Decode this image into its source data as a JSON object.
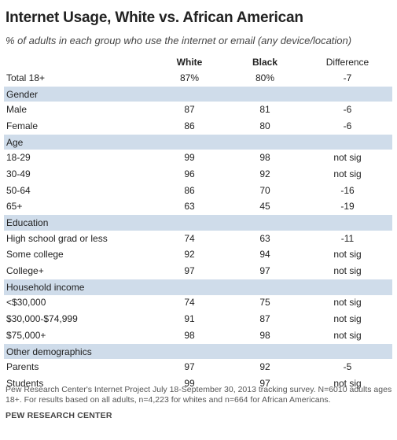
{
  "chart_data": {
    "type": "table",
    "title": "Internet Usage, White vs. African American",
    "subtitle": "% of adults in each group who use the internet or email (any device/location)",
    "columns": [
      "White",
      "Black",
      "Difference"
    ],
    "total_row": {
      "label": "Total 18+",
      "white": "87%",
      "black": "80%",
      "difference": "-7"
    },
    "sections": [
      {
        "heading": "Gender",
        "rows": [
          {
            "label": "Male",
            "white": "87",
            "black": "81",
            "difference": "-6"
          },
          {
            "label": "Female",
            "white": "86",
            "black": "80",
            "difference": "-6"
          }
        ]
      },
      {
        "heading": "Age",
        "rows": [
          {
            "label": "18-29",
            "white": "99",
            "black": "98",
            "difference": "not sig"
          },
          {
            "label": "30-49",
            "white": "96",
            "black": "92",
            "difference": "not sig"
          },
          {
            "label": "50-64",
            "white": "86",
            "black": "70",
            "difference": "-16"
          },
          {
            "label": "65+",
            "white": "63",
            "black": "45",
            "difference": "-19"
          }
        ]
      },
      {
        "heading": "Education",
        "rows": [
          {
            "label": "High school grad or less",
            "white": "74",
            "black": "63",
            "difference": "-11"
          },
          {
            "label": "Some college",
            "white": "92",
            "black": "94",
            "difference": "not sig"
          },
          {
            "label": "College+",
            "white": "97",
            "black": "97",
            "difference": "not sig"
          }
        ]
      },
      {
        "heading": "Household income",
        "rows": [
          {
            "label": "<$30,000",
            "white": "74",
            "black": "75",
            "difference": "not sig"
          },
          {
            "label": "$30,000-$74,999",
            "white": "91",
            "black": "87",
            "difference": "not sig"
          },
          {
            "label": "$75,000+",
            "white": "98",
            "black": "98",
            "difference": "not sig"
          }
        ]
      },
      {
        "heading": "Other demographics",
        "rows": [
          {
            "label": "Parents",
            "white": "97",
            "black": "92",
            "difference": "-5"
          },
          {
            "label": "Students",
            "white": "99",
            "black": "97",
            "difference": "not sig"
          }
        ]
      }
    ],
    "note": "Pew Research Center's Internet Project July 18-September 30, 2013 tracking survey. N=6010 adults ages 18+. For results based on all adults, n=4,223 for whites and n=664 for African Americans.",
    "source": "PEW RESEARCH CENTER"
  }
}
